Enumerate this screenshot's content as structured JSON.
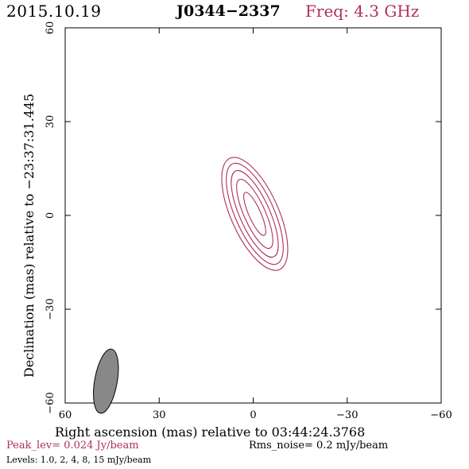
{
  "header": {
    "date": "2015.10.19",
    "source": "J0344−2337",
    "frequency": "Freq: 4.3 GHz"
  },
  "footer": {
    "peak": "Peak_lev=  0.024 Jy/beam",
    "rms": "Rms_noise=   0.2 mJy/beam",
    "levels": "Levels: 1.0,   2,   4,   8,   15 mJy/beam"
  },
  "colors": {
    "contour": "#b0305a",
    "beam_fill": "#888888",
    "accent_text": "#b0305a"
  },
  "chart_data": {
    "type": "contour",
    "title": "J0344−2337",
    "xlabel": "Right ascension (mas) relative to 03:44:24.3768",
    "ylabel": "Declination (mas) relative to −23:37:31.445",
    "xlim": [
      60,
      -60
    ],
    "ylim": [
      -60,
      60
    ],
    "x_ticks": [
      60,
      30,
      0,
      -30,
      -60
    ],
    "y_ticks": [
      60,
      30,
      0,
      -30,
      -60
    ],
    "x_tick_labels": [
      "60",
      "30",
      "0",
      "−30",
      "−60"
    ],
    "y_tick_labels": [
      "60",
      "30",
      "0",
      "−30",
      "−60"
    ],
    "contour_levels_mJy": [
      1.0,
      2,
      4,
      8,
      15
    ],
    "peak_Jy_per_beam": 0.024,
    "rms_mJy_per_beam": 0.2,
    "component": {
      "x": -0.5,
      "y": 0.5,
      "pa_deg": -24
    },
    "contours": [
      {
        "level": 1.0,
        "major": 19.5,
        "minor": 7.6
      },
      {
        "level": 2,
        "major": 17.5,
        "minor": 6.2
      },
      {
        "level": 4,
        "major": 15.0,
        "minor": 4.8
      },
      {
        "level": 8,
        "major": 12.0,
        "minor": 3.4
      },
      {
        "level": 15,
        "major": 7.5,
        "minor": 1.9
      }
    ],
    "beam": {
      "x": 47,
      "y": -53,
      "major": 10.4,
      "minor": 3.6,
      "pa_deg": 10
    }
  }
}
